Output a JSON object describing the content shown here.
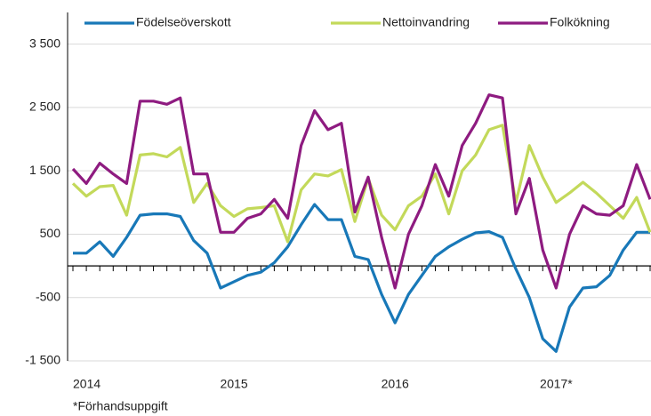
{
  "chart_data": {
    "type": "line",
    "categories": [
      "2014",
      null,
      null,
      null,
      null,
      null,
      null,
      null,
      null,
      null,
      null,
      null,
      "2015",
      null,
      null,
      null,
      null,
      null,
      null,
      null,
      null,
      null,
      null,
      null,
      "2016",
      null,
      null,
      null,
      null,
      null,
      null,
      null,
      null,
      null,
      null,
      null,
      "2017*",
      null,
      null,
      null,
      null,
      null,
      null,
      null
    ],
    "series": [
      {
        "name": "Födelseöverskott",
        "color": "#1878b8",
        "values": [
          200,
          200,
          380,
          150,
          450,
          800,
          820,
          820,
          780,
          400,
          200,
          -350,
          -250,
          -150,
          -100,
          50,
          300,
          650,
          970,
          730,
          730,
          150,
          100,
          -450,
          -900,
          -450,
          -150,
          150,
          300,
          420,
          520,
          540,
          450,
          -50,
          -500,
          -1150,
          -1350,
          -650,
          -350,
          -330,
          -150,
          250,
          530,
          530
        ]
      },
      {
        "name": "Nettoinvandring",
        "color": "#c3d95a",
        "values": [
          1300,
          1100,
          1250,
          1270,
          800,
          1750,
          1770,
          1720,
          1870,
          1000,
          1300,
          950,
          780,
          900,
          920,
          950,
          380,
          1200,
          1450,
          1420,
          1520,
          700,
          1380,
          800,
          570,
          950,
          1100,
          1450,
          820,
          1500,
          1750,
          2150,
          2220,
          1000,
          1900,
          1400,
          1000,
          1150,
          1320,
          1150,
          950,
          750,
          1080,
          530
        ]
      },
      {
        "name": "Folkökning",
        "color": "#8e1b80",
        "values": [
          1530,
          1300,
          1620,
          1450,
          1300,
          2600,
          2600,
          2550,
          2650,
          1450,
          1450,
          530,
          530,
          750,
          820,
          1050,
          750,
          1900,
          2450,
          2150,
          2250,
          850,
          1400,
          450,
          -350,
          500,
          950,
          1600,
          1100,
          1900,
          2250,
          2700,
          2650,
          820,
          1380,
          250,
          -350,
          500,
          950,
          820,
          800,
          950,
          1600,
          1050
        ]
      }
    ],
    "ylim": [
      -1500,
      4000
    ],
    "yticks": [
      {
        "value": -1500,
        "label": "-1 500"
      },
      -500,
      500,
      {
        "value": 1500,
        "label": "1 500"
      },
      {
        "value": 2500,
        "label": "2 500"
      },
      {
        "value": 3500,
        "label": "3 500"
      }
    ],
    "grid": true,
    "legend": "top",
    "note": "*Förhandsuppgift"
  }
}
